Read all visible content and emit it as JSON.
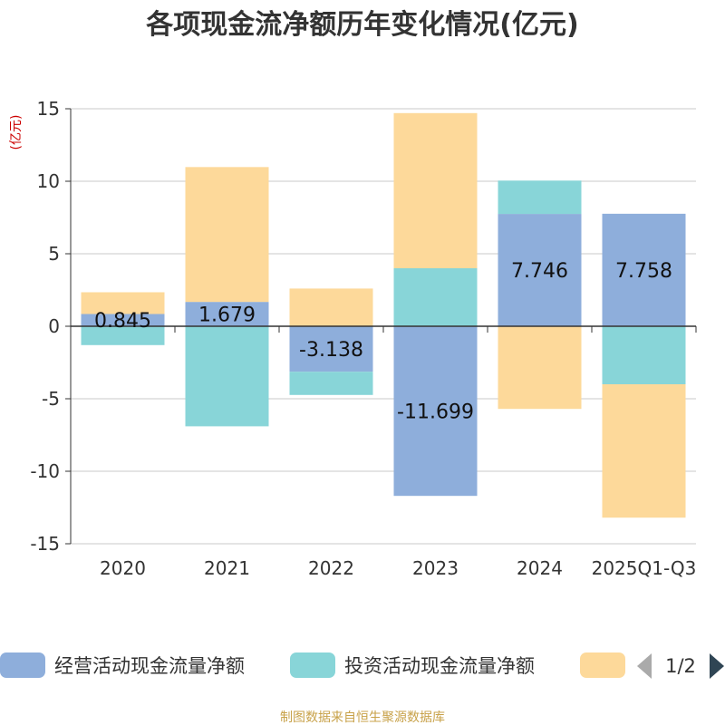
{
  "chart_data": {
    "type": "bar",
    "stacked": true,
    "title": "各项现金流净额历年变化情况(亿元)",
    "ylabel": "(亿元)",
    "ylim": [
      -15,
      15
    ],
    "yticks": [
      15,
      10,
      5,
      0,
      -5,
      -10,
      -15
    ],
    "grid": true,
    "categories": [
      "2020",
      "2021",
      "2022",
      "2023",
      "2024",
      "2025Q1-Q3"
    ],
    "series": [
      {
        "name": "经营活动现金流量净额",
        "color": "#8eaedb",
        "values": [
          0.845,
          1.679,
          -3.138,
          -11.699,
          7.746,
          7.758
        ],
        "show_labels": true
      },
      {
        "name": "投资活动现金流量净额",
        "color": "#88d5d8",
        "values": [
          -1.3,
          -6.9,
          -1.6,
          4.0,
          2.3,
          -4.0
        ],
        "show_labels": false
      },
      {
        "name": "",
        "color": "#fdd99a",
        "values": [
          1.5,
          9.3,
          2.6,
          10.7,
          -5.7,
          -9.2
        ],
        "show_labels": false
      }
    ],
    "legend": {
      "placement": "bottom",
      "page": "1/2"
    },
    "source": "制图数据来自恒生聚源数据库"
  }
}
